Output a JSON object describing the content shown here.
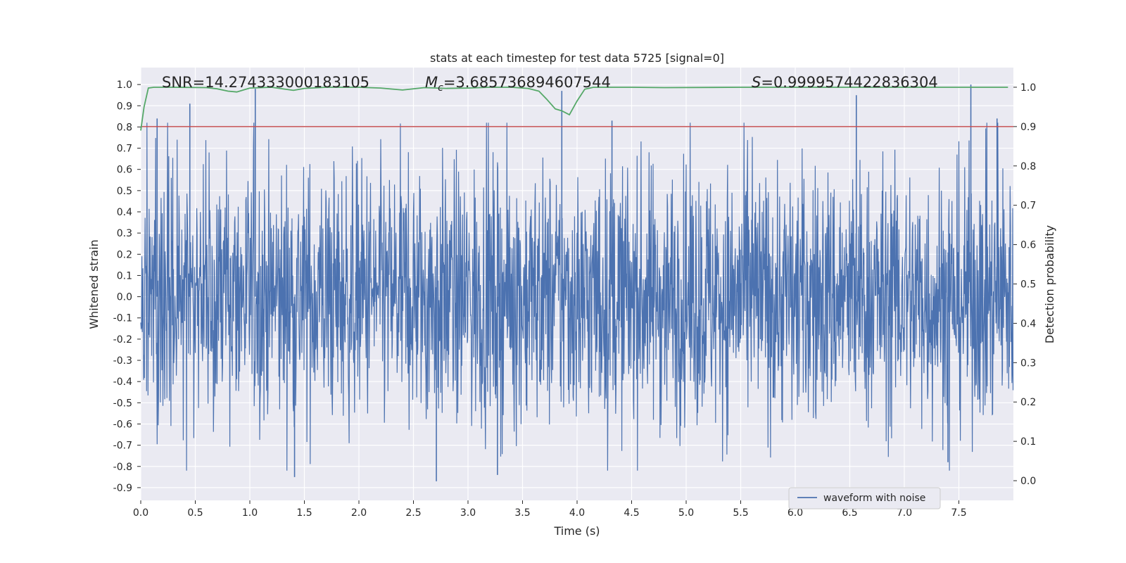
{
  "chart_data": {
    "type": "line",
    "title": "stats at each timestep for test data 5725 [signal=0]",
    "xlabel": "Time (s)",
    "ylabel": "Whitened strain",
    "ylabel_right": "Detection probability",
    "xlim": [
      0.0,
      8.0
    ],
    "ylim": [
      -0.96,
      1.08
    ],
    "ylim_right": [
      -0.05,
      1.05
    ],
    "x_ticks": [
      "0.0",
      "0.5",
      "1.0",
      "1.5",
      "2.0",
      "2.5",
      "3.0",
      "3.5",
      "4.0",
      "4.5",
      "5.0",
      "5.5",
      "6.0",
      "6.5",
      "7.0",
      "7.5"
    ],
    "y_ticks": [
      "1.0",
      "0.9",
      "0.8",
      "0.7",
      "0.6",
      "0.5",
      "0.4",
      "0.3",
      "0.2",
      "0.1",
      "0.0",
      "-0.1",
      "-0.2",
      "-0.3",
      "-0.4",
      "-0.5",
      "-0.6",
      "-0.7",
      "-0.8",
      "-0.9"
    ],
    "y_ticks_right": [
      "1.0",
      "0.9",
      "0.8",
      "0.7",
      "0.6",
      "0.5",
      "0.4",
      "0.3",
      "0.2",
      "0.1",
      "0.0"
    ],
    "grid": true,
    "legend_position": "lower-right",
    "annotations": {
      "snr": "SNR=14.274333000183105",
      "mc_symbol": "M",
      "mc_sub": "c",
      "mc_value": "=3.685736894607544",
      "s_symbol": "S",
      "s_value": "=0.9999574422836304"
    },
    "series": [
      {
        "name": "waveform with noise",
        "axis": "left",
        "color": "#4c72b0",
        "envelope_note": "dense noise, approx. range -0.86 to 0.98",
        "peaks": [
          {
            "x": 0.15,
            "y": 0.84
          },
          {
            "x": 0.45,
            "y": 0.91
          },
          {
            "x": 1.05,
            "y": 0.98
          },
          {
            "x": 1.41,
            "y": -0.85
          },
          {
            "x": 2.71,
            "y": -0.87
          },
          {
            "x": 3.27,
            "y": -0.84
          },
          {
            "x": 3.86,
            "y": 0.97
          },
          {
            "x": 4.32,
            "y": 0.83
          },
          {
            "x": 6.56,
            "y": 0.95
          },
          {
            "x": 7.61,
            "y": 1.0
          },
          {
            "x": 7.4,
            "y": -0.78
          },
          {
            "x": 7.85,
            "y": 0.84
          }
        ]
      },
      {
        "name": "",
        "axis": "right",
        "color": "#55a868",
        "x": [
          0.0,
          0.03,
          0.07,
          0.12,
          0.3,
          0.6,
          0.7,
          0.8,
          0.88,
          1.0,
          1.2,
          1.4,
          1.5,
          1.7,
          2.0,
          2.2,
          2.4,
          2.6,
          2.8,
          3.0,
          3.2,
          3.4,
          3.55,
          3.65,
          3.72,
          3.8,
          3.86,
          3.93,
          4.0,
          4.07,
          4.15,
          4.5,
          4.8,
          5.5,
          7.0,
          7.95
        ],
        "y": [
          0.89,
          0.95,
          0.998,
          1.0,
          1.0,
          0.999,
          0.996,
          0.99,
          0.988,
          0.998,
          1.0,
          0.992,
          0.997,
          1.0,
          1.0,
          0.998,
          0.993,
          0.999,
          0.997,
          0.998,
          1.0,
          1.0,
          0.997,
          0.99,
          0.97,
          0.945,
          0.94,
          0.93,
          0.965,
          0.995,
          1.0,
          1.0,
          0.999,
          1.0,
          1.0,
          1.0
        ]
      },
      {
        "name": "",
        "axis": "right",
        "type": "hline",
        "color": "#c44e52",
        "y": 0.9
      }
    ]
  }
}
